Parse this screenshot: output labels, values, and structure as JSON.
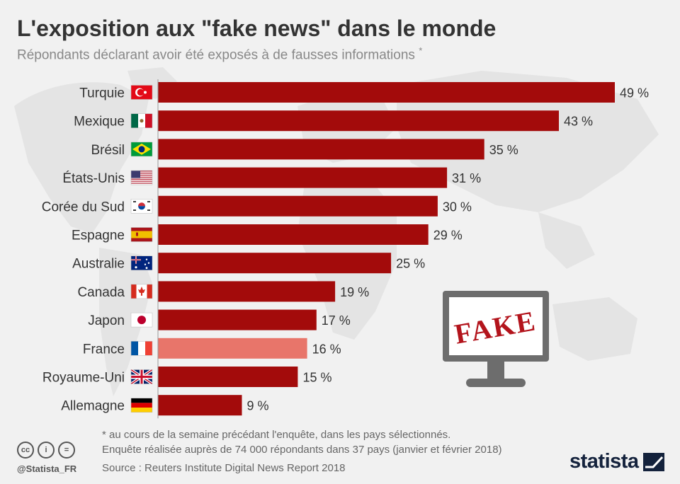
{
  "header": {
    "title": "L'exposition aux \"fake news\" dans le monde",
    "subtitle": "Répondants déclarant avoir été exposés à de fausses informations",
    "subtitle_mark": "*"
  },
  "chart_data": {
    "type": "bar",
    "orientation": "horizontal",
    "title": "L'exposition aux \"fake news\" dans le monde",
    "categories": [
      "Turquie",
      "Mexique",
      "Brésil",
      "États-Unis",
      "Corée du Sud",
      "Espagne",
      "Australie",
      "Canada",
      "Japon",
      "France",
      "Royaume-Uni",
      "Allemagne"
    ],
    "values": [
      49,
      43,
      35,
      31,
      30,
      29,
      25,
      19,
      17,
      16,
      15,
      9
    ],
    "value_labels": [
      "49 %",
      "43 %",
      "35 %",
      "31 %",
      "30 %",
      "29 %",
      "25 %",
      "19 %",
      "17 %",
      "16 %",
      "15 %",
      "9 %"
    ],
    "unit": "%",
    "xlim": [
      0,
      49
    ],
    "grid": false,
    "legend": "none",
    "bar_color": "#a30b0b",
    "highlight_category": "France",
    "highlight_color": "#e8756a",
    "flags": [
      "turkey-flag",
      "mexico-flag",
      "brazil-flag",
      "usa-flag",
      "south-korea-flag",
      "spain-flag",
      "australia-flag",
      "canada-flag",
      "japan-flag",
      "france-flag",
      "uk-flag",
      "germany-flag"
    ]
  },
  "illustration": {
    "monitor_text": "FAKE",
    "text_color": "#b3141c"
  },
  "footer": {
    "note": "* au cours de la semaine précédant l'enquête, dans les pays sélectionnés.",
    "survey": "Enquête réalisée auprès de 74 000 répondants dans 37 pays (janvier et février 2018)",
    "source": "Source : Reuters Institute Digital News Report 2018",
    "handle": "@Statista_FR",
    "license_icons": [
      "cc-icon",
      "attribution-icon",
      "no-derivatives-icon"
    ],
    "license_glyphs": [
      "cc",
      "i",
      "="
    ],
    "brand": "statista"
  }
}
